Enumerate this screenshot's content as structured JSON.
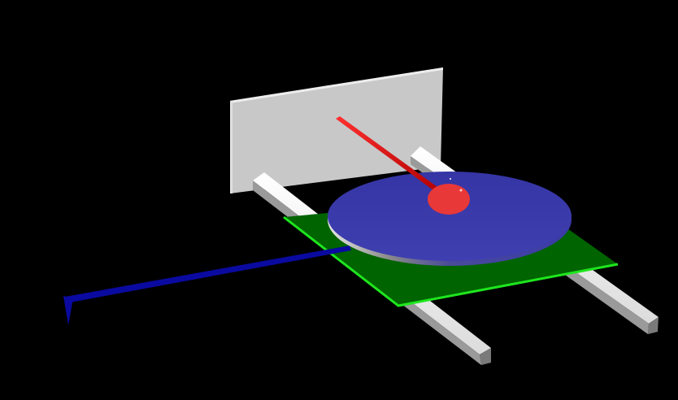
{
  "scene": {
    "background_color": "#000000",
    "objects": [
      {
        "name": "backboard-panel",
        "color": "#c8c8c8"
      },
      {
        "name": "left-rail",
        "color": "#f2f2f2"
      },
      {
        "name": "right-rail",
        "color": "#f2f2f2"
      },
      {
        "name": "green-platform",
        "color": "#006400",
        "edge_color": "#1ee61e"
      },
      {
        "name": "blue-disc",
        "color": "#3a3aa8"
      },
      {
        "name": "red-rod",
        "color": "#e01010"
      },
      {
        "name": "red-ball",
        "color": "#e83838"
      },
      {
        "name": "blue-axis-line",
        "color": "#0a0aa0"
      }
    ]
  }
}
